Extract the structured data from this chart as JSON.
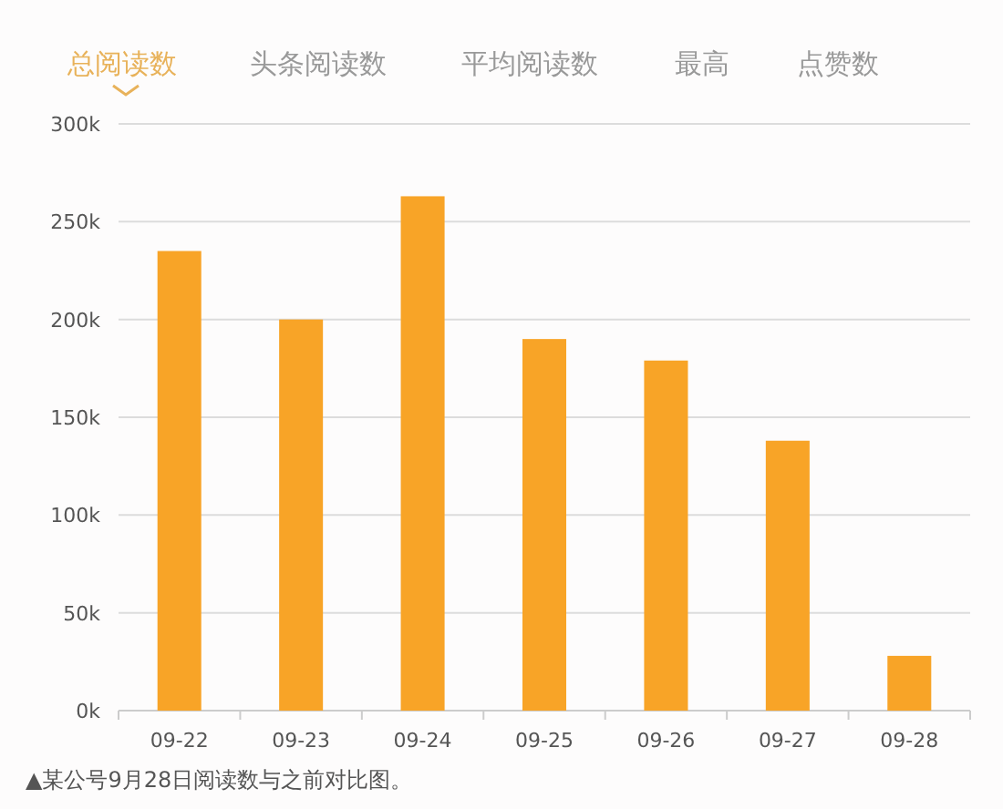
{
  "chart_data": {
    "type": "bar",
    "title": "总阅读数",
    "categories": [
      "09-22",
      "09-23",
      "09-24",
      "09-25",
      "09-26",
      "09-27",
      "09-28"
    ],
    "values": [
      235,
      200,
      263,
      190,
      179,
      138,
      28
    ],
    "color": "#f8a427",
    "ylim": [
      0,
      300
    ],
    "yticks": [
      {
        "value": 0,
        "label": "0k"
      },
      {
        "value": 50,
        "label": "50k"
      },
      {
        "value": 100,
        "label": "100k"
      },
      {
        "value": 150,
        "label": "150k"
      },
      {
        "value": 200,
        "label": "200k"
      },
      {
        "value": 250,
        "label": "250k"
      },
      {
        "value": 300,
        "label": "300k"
      }
    ],
    "grid": "y",
    "annotations": [
      "头条阅读数",
      "平均阅读数",
      "最高",
      "点赞数",
      "▲某公号9月28日阅读数与之前对比图。"
    ]
  }
}
